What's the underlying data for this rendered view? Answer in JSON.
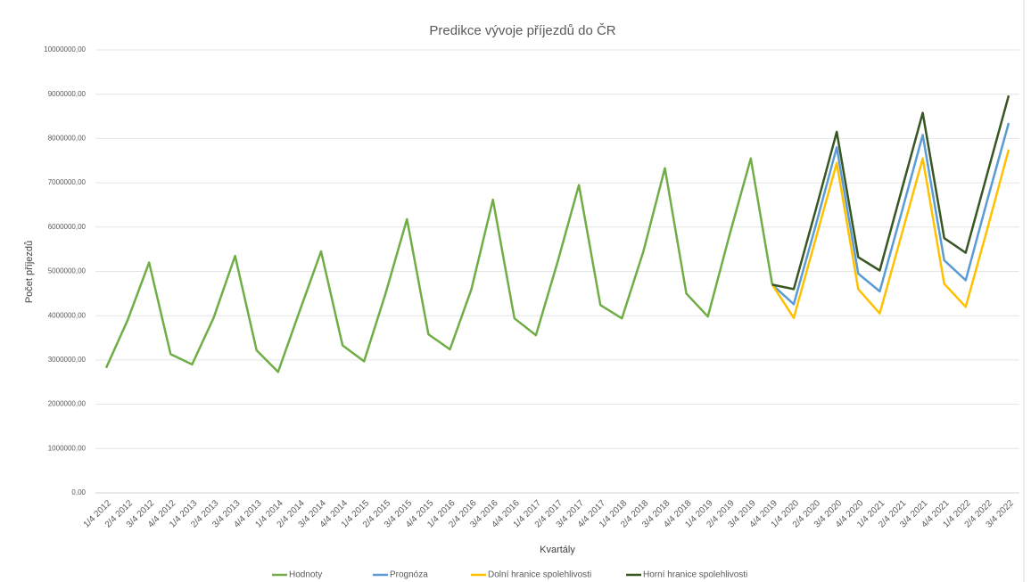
{
  "chart_data": {
    "type": "line",
    "title": "Predikce vývoje příjezdů do ČR",
    "x_label": "Kvartály",
    "y_label": "Počet příjezdů",
    "categories": [
      "1/4 2012",
      "2/4 2012",
      "3/4 2012",
      "4/4 2012",
      "1/4 2013",
      "2/4 2013",
      "3/4 2013",
      "4/4 2013",
      "1/4 2014",
      "2/4 2014",
      "3/4 2014",
      "4/4 2014",
      "1/4 2015",
      "2/4 2015",
      "3/4 2015",
      "4/4 2015",
      "1/4 2016",
      "2/4 2016",
      "3/4 2016",
      "4/4 2016",
      "1/4 2017",
      "2/4 2017",
      "3/4 2017",
      "4/4 2017",
      "1/4 2018",
      "2/4 2018",
      "3/4 2018",
      "4/4 2018",
      "1/4 2019",
      "2/4 2019",
      "3/4 2019",
      "4/4 2019",
      "1/4 2020",
      "2/4 2020",
      "3/4 2020",
      "4/4 2020",
      "1/4 2021",
      "2/4 2021",
      "3/4 2021",
      "4/4 2021",
      "1/4 2022",
      "2/4 2022",
      "3/4 2022"
    ],
    "series": [
      {
        "name": "Hodnoty",
        "color": "#70ad47",
        "values": [
          2820000,
          3900000,
          5200000,
          3130000,
          2900000,
          3950000,
          5350000,
          3220000,
          2730000,
          4100000,
          5450000,
          3330000,
          2970000,
          4500000,
          6180000,
          3580000,
          3240000,
          4600000,
          6620000,
          3940000,
          3560000,
          5200000,
          6950000,
          4240000,
          3940000,
          5450000,
          7330000,
          4500000,
          3980000,
          5800000,
          7550000,
          4700000,
          null,
          null,
          null,
          null,
          null,
          null,
          null,
          null,
          null,
          null,
          null
        ]
      },
      {
        "name": "Prognóza",
        "color": "#5b9bd5",
        "values": [
          null,
          null,
          null,
          null,
          null,
          null,
          null,
          null,
          null,
          null,
          null,
          null,
          null,
          null,
          null,
          null,
          null,
          null,
          null,
          null,
          null,
          null,
          null,
          null,
          null,
          null,
          null,
          null,
          null,
          null,
          null,
          4700000,
          4260000,
          6000000,
          7800000,
          4950000,
          4550000,
          6300000,
          8080000,
          5250000,
          4800000,
          6600000,
          8350000
        ]
      },
      {
        "name": "Dolní hranice spolehlivosti",
        "color": "#ffc000",
        "values": [
          null,
          null,
          null,
          null,
          null,
          null,
          null,
          null,
          null,
          null,
          null,
          null,
          null,
          null,
          null,
          null,
          null,
          null,
          null,
          null,
          null,
          null,
          null,
          null,
          null,
          null,
          null,
          null,
          null,
          null,
          null,
          4700000,
          3950000,
          5700000,
          7450000,
          4600000,
          4050000,
          5800000,
          7550000,
          4720000,
          4200000,
          5950000,
          7750000
        ]
      },
      {
        "name": "Horní hranice spolehlivosti",
        "color": "#375623",
        "values": [
          null,
          null,
          null,
          null,
          null,
          null,
          null,
          null,
          null,
          null,
          null,
          null,
          null,
          null,
          null,
          null,
          null,
          null,
          null,
          null,
          null,
          null,
          null,
          null,
          null,
          null,
          null,
          null,
          null,
          null,
          null,
          4700000,
          4600000,
          6350000,
          8150000,
          5320000,
          5020000,
          6800000,
          8580000,
          5750000,
          5420000,
          7200000,
          8970000
        ]
      }
    ],
    "ylim": [
      0,
      10000000
    ],
    "yticks": [
      {
        "value": 0,
        "label": "0,00"
      },
      {
        "value": 1000000,
        "label": "1000000,00"
      },
      {
        "value": 2000000,
        "label": "2000000,00"
      },
      {
        "value": 3000000,
        "label": "3000000,00"
      },
      {
        "value": 4000000,
        "label": "4000000,00"
      },
      {
        "value": 5000000,
        "label": "5000000,00"
      },
      {
        "value": 6000000,
        "label": "6000000,00"
      },
      {
        "value": 7000000,
        "label": "7000000,00"
      },
      {
        "value": 8000000,
        "label": "8000000,00"
      },
      {
        "value": 9000000,
        "label": "9000000,00"
      },
      {
        "value": 10000000,
        "label": "10000000,00"
      }
    ],
    "grid": true,
    "legend": "bottom"
  }
}
